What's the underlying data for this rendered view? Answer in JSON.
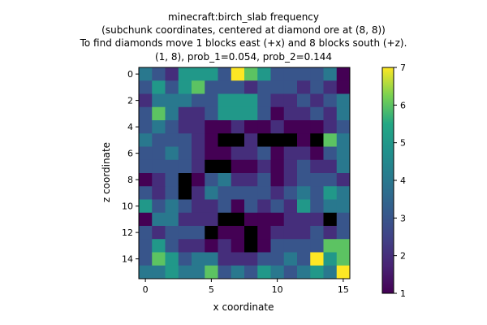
{
  "chart_data": {
    "type": "heatmap",
    "title_lines": [
      "minecraft:birch_slab frequency",
      "(subchunk coordinates, centered at diamond ore at (8, 8))",
      "To find diamonds move 1 blocks east (+x) and 8 blocks south (+z).",
      "(1, 8), prob_1=0.054, prob_2=0.144"
    ],
    "xlabel": "x coordinate",
    "ylabel": "z coordinate",
    "x_ticks": [
      0,
      5,
      10,
      15
    ],
    "y_ticks": [
      0,
      2,
      4,
      6,
      8,
      10,
      12,
      14
    ],
    "xlim": [
      -0.5,
      15.5
    ],
    "ylim": [
      15.5,
      -0.5
    ],
    "colorbar": {
      "min": 1,
      "max": 7,
      "ticks": [
        1,
        2,
        3,
        4,
        5,
        6,
        7
      ],
      "colormap": "viridis"
    },
    "values": [
      [
        4,
        3,
        2,
        5,
        5,
        5,
        3,
        7,
        6,
        5,
        3,
        3,
        3,
        3,
        4,
        1
      ],
      [
        3,
        5,
        3,
        5,
        6,
        3,
        3,
        3,
        2,
        3,
        3,
        3,
        2,
        3,
        2,
        1
      ],
      [
        2,
        4,
        4,
        4,
        3,
        3,
        5,
        5,
        5,
        3,
        2,
        2,
        3,
        2,
        3,
        4
      ],
      [
        3,
        6,
        4,
        2,
        2,
        3,
        5,
        5,
        5,
        3,
        1,
        2,
        2,
        3,
        2,
        4
      ],
      [
        3,
        4,
        3,
        2,
        2,
        1,
        1,
        2,
        1,
        1,
        2,
        1,
        1,
        1,
        2,
        3
      ],
      [
        4,
        3,
        3,
        3,
        2,
        1,
        0,
        0,
        2,
        0,
        0,
        0,
        1,
        0,
        6,
        4
      ],
      [
        3,
        3,
        4,
        3,
        2,
        1,
        1,
        2,
        2,
        3,
        1,
        2,
        2,
        1,
        3,
        4
      ],
      [
        3,
        3,
        3,
        3,
        2,
        0,
        0,
        1,
        1,
        2,
        1,
        2,
        3,
        2,
        2,
        4
      ],
      [
        1,
        2,
        3,
        0,
        1,
        3,
        4,
        2,
        2,
        3,
        1,
        2,
        3,
        3,
        3,
        2
      ],
      [
        3,
        2,
        3,
        0,
        2,
        4,
        3,
        3,
        3,
        3,
        2,
        3,
        4,
        3,
        5,
        4
      ],
      [
        5,
        3,
        4,
        3,
        2,
        2,
        3,
        1,
        3,
        2,
        3,
        2,
        5,
        3,
        4,
        4
      ],
      [
        1,
        4,
        4,
        2,
        2,
        2,
        0,
        0,
        1,
        1,
        1,
        2,
        2,
        2,
        0,
        3
      ],
      [
        3,
        2,
        3,
        3,
        3,
        0,
        1,
        1,
        0,
        1,
        2,
        2,
        2,
        3,
        2,
        3
      ],
      [
        3,
        5,
        3,
        2,
        2,
        1,
        2,
        1,
        0,
        1,
        3,
        3,
        3,
        3,
        6,
        6
      ],
      [
        3,
        6,
        5,
        3,
        4,
        4,
        2,
        2,
        2,
        3,
        3,
        4,
        3,
        7,
        5,
        6
      ],
      [
        4,
        4,
        5,
        4,
        4,
        6,
        3,
        4,
        3,
        5,
        4,
        3,
        4,
        5,
        4,
        7
      ]
    ]
  }
}
